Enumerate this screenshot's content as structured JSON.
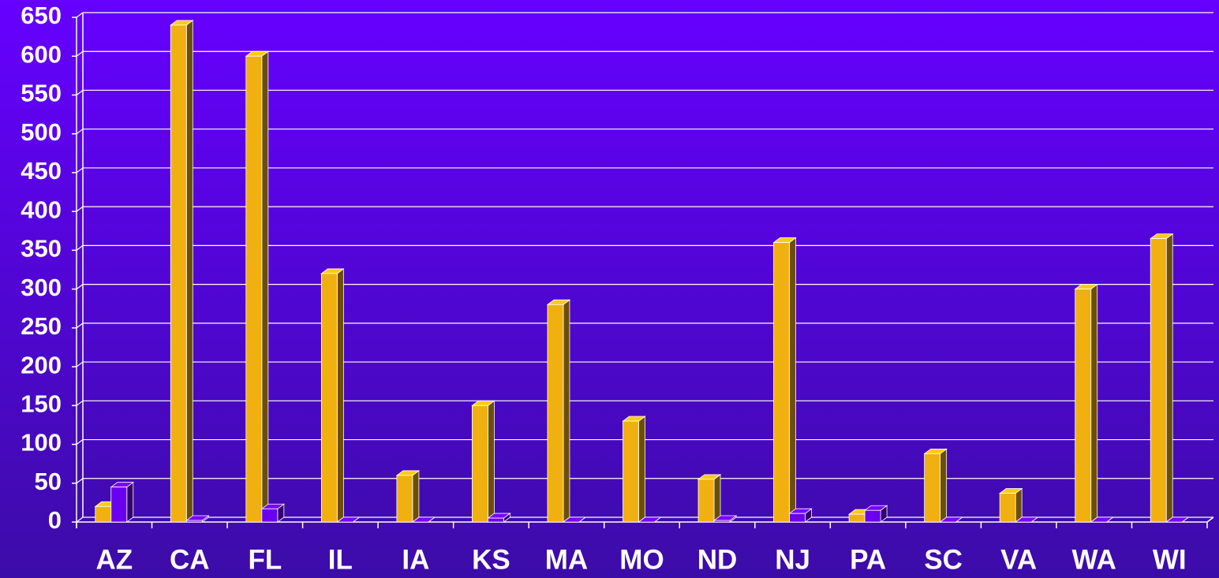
{
  "chart_data": {
    "type": "bar",
    "categories": [
      "AZ",
      "CA",
      "FL",
      "IL",
      "IA",
      "KS",
      "MA",
      "MO",
      "ND",
      "NJ",
      "PA",
      "SC",
      "VA",
      "WA",
      "WI"
    ],
    "series": [
      {
        "color": "#f0b010",
        "values": [
          20,
          640,
          600,
          320,
          60,
          150,
          280,
          130,
          55,
          360,
          10,
          88,
          37,
          300,
          365
        ]
      },
      {
        "color": "#6a00f0",
        "values": [
          45,
          2,
          17,
          0,
          0,
          5,
          0,
          0,
          2,
          11,
          15,
          0,
          0,
          0,
          0
        ]
      }
    ],
    "ylim": [
      0,
      650
    ],
    "yticks": [
      0,
      50,
      100,
      150,
      200,
      250,
      300,
      350,
      400,
      450,
      500,
      550,
      600,
      650
    ],
    "grid": true
  }
}
